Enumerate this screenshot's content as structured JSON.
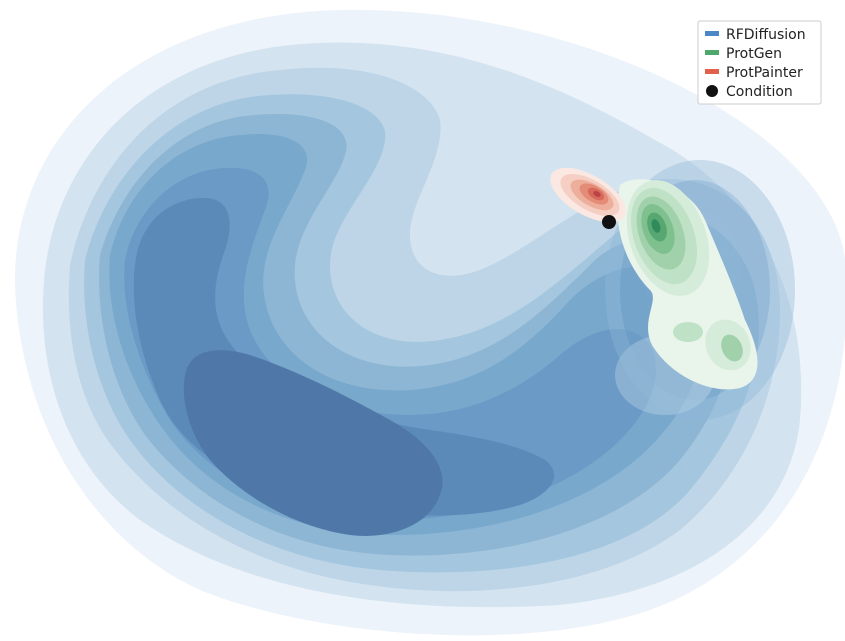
{
  "chart_data": {
    "type": "kde_contour",
    "axes_visible": false,
    "grid": false,
    "legend": {
      "placement": "top-right",
      "entries": [
        {
          "label": "RFDiffusion",
          "marker": "bar",
          "color": "#4a87c4"
        },
        {
          "label": "ProtGen",
          "marker": "bar",
          "color": "#4ea86b"
        },
        {
          "label": "ProtPainter",
          "marker": "bar",
          "color": "#e0604a"
        },
        {
          "label": "Condition",
          "marker": "dot",
          "color": "#111111"
        }
      ]
    },
    "series": [
      {
        "name": "RFDiffusion",
        "levels": 9,
        "colors": [
          "#edf3fa",
          "#d4e3f0",
          "#bdd5e7",
          "#a4c6de",
          "#8db6d5",
          "#79a8cd",
          "#6a9ac5",
          "#5b8ab9",
          "#4f78a8"
        ]
      },
      {
        "name": "ProtGen",
        "levels": 8,
        "colors": [
          "#e9f4ea",
          "#d6ecda",
          "#bfe1c5",
          "#a1d1ab",
          "#7fc08f",
          "#56a771",
          "#318a59",
          "#1b6b47"
        ]
      },
      {
        "name": "ProtPainter",
        "levels": 6,
        "colors": [
          "#fbe8e2",
          "#f5cfc3",
          "#eeae9c",
          "#e48c77",
          "#d7685a",
          "#b94448"
        ]
      }
    ],
    "condition_point": {
      "label": "Condition",
      "color": "#111111"
    }
  }
}
